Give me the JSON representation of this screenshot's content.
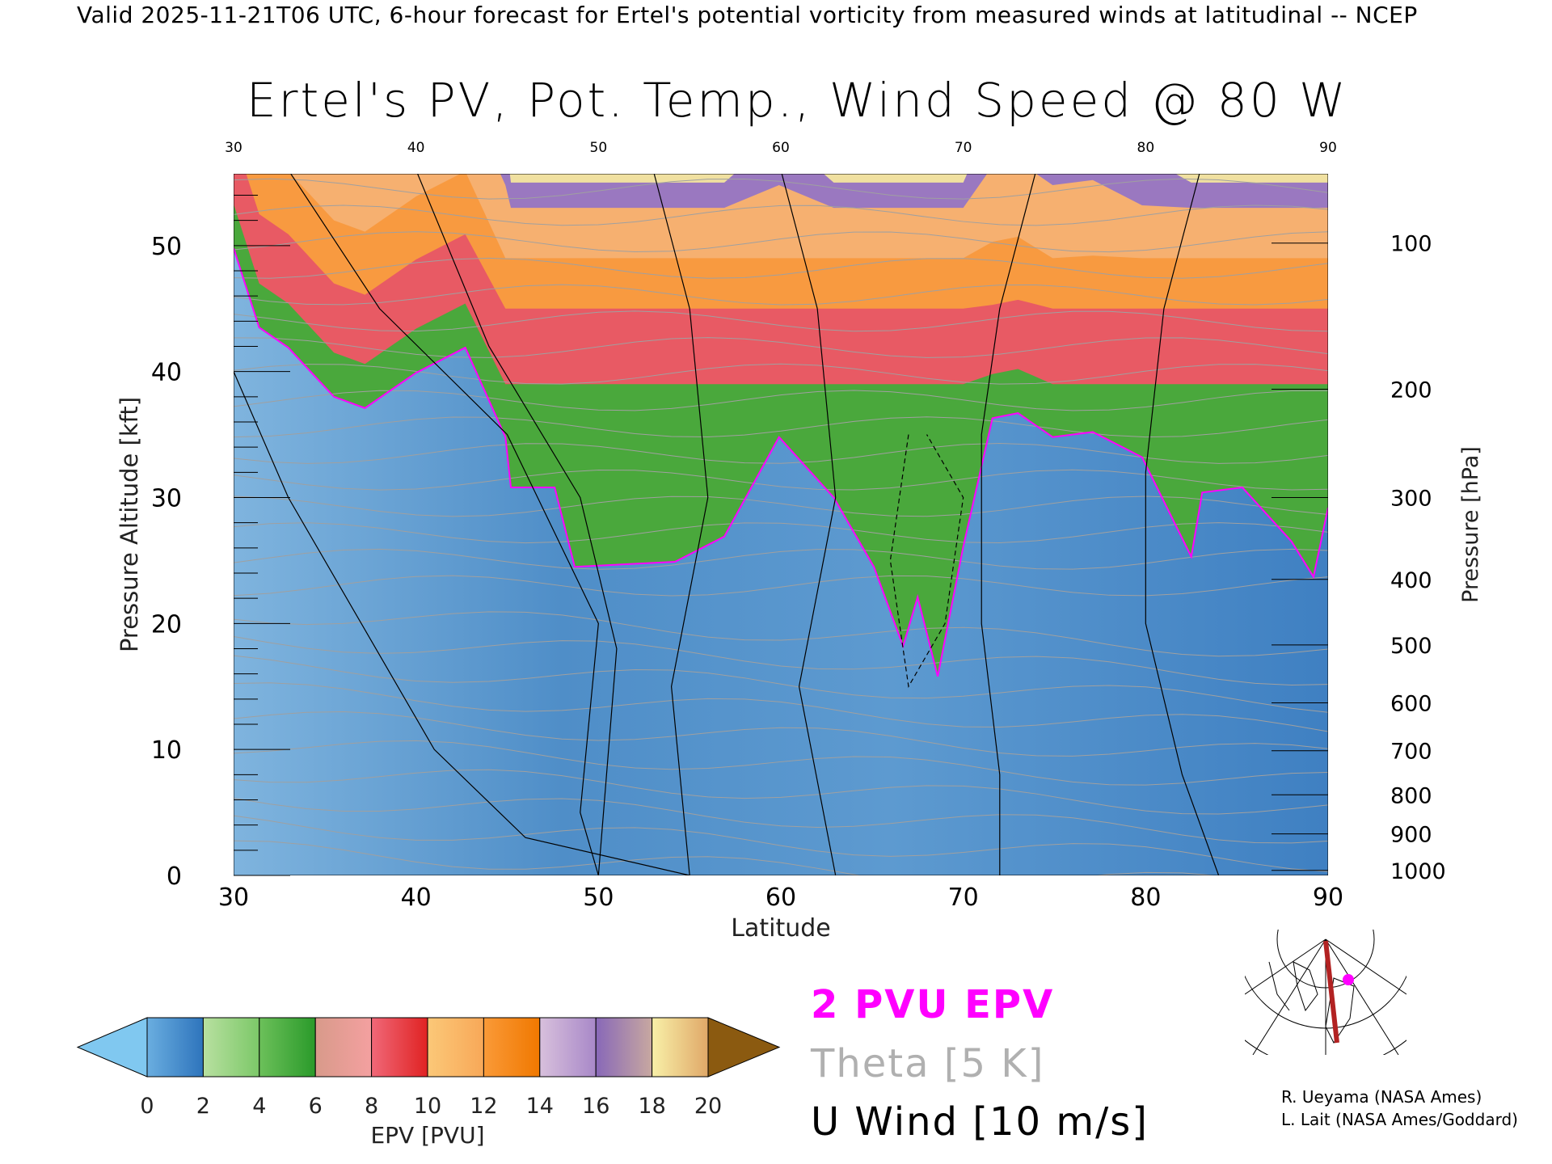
{
  "header": {
    "caption": "Valid 2025-11-21T06 UTC, 6-hour forecast for Ertel's potential vorticity from measured winds at latitudinal -- NCEP",
    "title": "Ertel's PV, Pot. Temp., Wind Speed @ 80 W"
  },
  "legend": {
    "pvu": "2 PVU EPV",
    "theta": "Theta [5 K]",
    "wind": "U Wind [10 m/s]"
  },
  "colors": {
    "pvu_line": "#ff00ff",
    "theta_line": "#a0a0a0",
    "wind_line": "#000000",
    "map_track": "#b22222"
  },
  "credits": [
    "R. Ueyama (NASA Ames)",
    "L. Lait (NASA Ames/Goddard)"
  ],
  "chart_data": {
    "type": "heatmap",
    "title": "Ertel's PV, Pot. Temp., Wind Speed @ 80 W",
    "xlabel": "Latitude",
    "ylabel": "Pressure Altitude [kft]",
    "y2label": "Pressure [hPa]",
    "xlim": [
      30,
      90
    ],
    "ylim": [
      0,
      55.7
    ],
    "xticks": [
      30,
      40,
      50,
      60,
      70,
      80,
      90
    ],
    "yticks": [
      0,
      10,
      20,
      30,
      40,
      50
    ],
    "pressure_ticks": [
      {
        "label": "100",
        "kft": 50.2
      },
      {
        "label": "200",
        "kft": 38.6
      },
      {
        "label": "300",
        "kft": 30.0
      },
      {
        "label": "400",
        "kft": 23.5
      },
      {
        "label": "500",
        "kft": 18.3
      },
      {
        "label": "600",
        "kft": 13.7
      },
      {
        "label": "700",
        "kft": 9.9
      },
      {
        "label": "800",
        "kft": 6.4
      },
      {
        "label": "900",
        "kft": 3.3
      },
      {
        "label": "1000",
        "kft": 0.4
      }
    ],
    "tropopause_2pvu": [
      [
        30,
        49.8
      ],
      [
        31.4,
        43.5
      ],
      [
        33,
        41.9
      ],
      [
        35.5,
        38
      ],
      [
        37.2,
        37.1
      ],
      [
        40,
        39.9
      ],
      [
        42.7,
        41.9
      ],
      [
        44.9,
        34.8
      ],
      [
        45.2,
        30.8
      ],
      [
        47.6,
        30.8
      ],
      [
        48.7,
        24.5
      ],
      [
        54.2,
        24.9
      ],
      [
        56.9,
        26.9
      ],
      [
        59.9,
        34.8
      ],
      [
        62.9,
        30
      ],
      [
        65.1,
        24.5
      ],
      [
        66.7,
        18.2
      ],
      [
        67.5,
        22.1
      ],
      [
        68.6,
        15.8
      ],
      [
        70,
        26.1
      ],
      [
        71.6,
        36.3
      ],
      [
        73,
        36.7
      ],
      [
        74.9,
        34.8
      ],
      [
        77.1,
        35.2
      ],
      [
        79.8,
        33.2
      ],
      [
        82.5,
        25.3
      ],
      [
        83.1,
        30.4
      ],
      [
        85.3,
        30.8
      ],
      [
        88,
        26.5
      ],
      [
        89.2,
        23.7
      ],
      [
        90,
        29.2
      ]
    ],
    "colorbar": {
      "label": "EPV [PVU]",
      "ticks": [
        "0",
        "2",
        "4",
        "6",
        "8",
        "10",
        "12",
        "14",
        "16",
        "18",
        "20"
      ],
      "segments": [
        [
          "#6aaee0",
          "#2e74bc"
        ],
        [
          "#b8e0a0",
          "#7cc868"
        ],
        [
          "#6cc05a",
          "#2a9a2a"
        ],
        [
          "#d89a8a",
          "#f4a0a0"
        ],
        [
          "#f06878",
          "#e02222"
        ],
        [
          "#fbc878",
          "#f8a858"
        ],
        [
          "#fa9a38",
          "#f07800"
        ],
        [
          "#d8c0dc",
          "#a888c8"
        ],
        [
          "#8868b8",
          "#c8a8a0"
        ],
        [
          "#f8f0a8",
          "#e0a868"
        ]
      ],
      "under_color": "#80c8f0",
      "over_color": "#8b5a10"
    }
  }
}
